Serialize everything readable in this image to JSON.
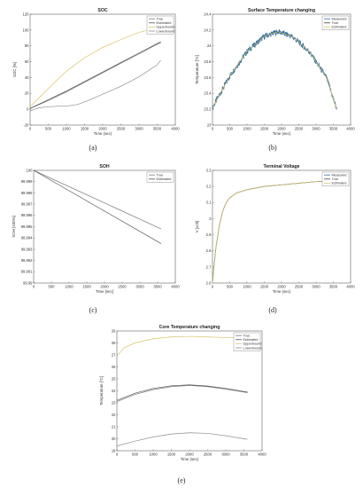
{
  "chart_data": [
    {
      "id": "a",
      "caption": "(a)",
      "type": "line",
      "title": "SOC",
      "xlabel": "Time (sec)",
      "ylabel": "SOC [%]",
      "xlim": [
        0,
        4000
      ],
      "ylim": [
        -20,
        120
      ],
      "xticks": [
        0,
        500,
        1000,
        1500,
        2000,
        2500,
        3000,
        3500,
        4000
      ],
      "yticks": [
        -20,
        0,
        20,
        40,
        60,
        80,
        100,
        120
      ],
      "grid": false,
      "legend_position": "top-right",
      "series": [
        {
          "name": "True",
          "color": "#7a7a7a",
          "x": [
            0,
            500,
            1000,
            1500,
            2000,
            2500,
            3000,
            3500,
            3600
          ],
          "y": [
            1,
            11,
            22,
            34,
            46,
            58,
            70,
            82,
            84
          ]
        },
        {
          "name": "Estimated",
          "color": "#555555",
          "x": [
            0,
            500,
            1000,
            1500,
            2000,
            2500,
            3000,
            3500,
            3600
          ],
          "y": [
            1,
            12,
            23,
            35,
            47,
            59,
            71,
            83,
            85
          ]
        },
        {
          "name": "Upperbound",
          "color": "#d9c46a",
          "x": [
            0,
            300,
            700,
            1000,
            1500,
            2000,
            2500,
            3000,
            3500,
            3600
          ],
          "y": [
            3,
            17,
            35,
            48,
            65,
            78,
            88,
            97,
            103,
            104
          ]
        },
        {
          "name": "Lowerbound",
          "color": "#8f8f8f",
          "x": [
            0,
            250,
            500,
            800,
            1000,
            1300,
            1600,
            2000,
            2500,
            3000,
            3500,
            3600
          ],
          "y": [
            -2,
            2,
            3,
            4,
            4,
            6,
            11,
            19,
            29,
            41,
            56,
            62
          ]
        }
      ]
    },
    {
      "id": "b",
      "caption": "(b)",
      "type": "line",
      "title": "Surface Temperature changing",
      "xlabel": "Time (sec)",
      "ylabel": "Temperature [ºC]",
      "xlim": [
        0,
        4000
      ],
      "ylim": [
        23,
        24.4
      ],
      "xticks": [
        0,
        500,
        1000,
        1500,
        2000,
        2500,
        3000,
        3500,
        4000
      ],
      "yticks": [
        23,
        23.2,
        23.4,
        23.6,
        23.8,
        24,
        24.2,
        24.4
      ],
      "grid": false,
      "legend_position": "top-right",
      "series": [
        {
          "name": "Measured",
          "color": "#2e6fa8",
          "noisy": true,
          "x": [
            0,
            500,
            1000,
            1500,
            1900,
            2300,
            2800,
            3300,
            3600
          ],
          "y": [
            23.22,
            23.62,
            23.93,
            24.12,
            24.18,
            24.12,
            23.93,
            23.6,
            23.2
          ]
        },
        {
          "name": "True",
          "color": "#444444",
          "x": [
            0,
            500,
            1000,
            1500,
            1900,
            2300,
            2800,
            3300,
            3600
          ],
          "y": [
            23.22,
            23.62,
            23.93,
            24.12,
            24.18,
            24.12,
            23.93,
            23.6,
            23.2
          ]
        },
        {
          "name": "Estimated",
          "color": "#d9c46a",
          "x": [
            0,
            500,
            1000,
            1500,
            1900,
            2300,
            2800,
            3300,
            3600
          ],
          "y": [
            23.22,
            23.62,
            23.93,
            24.12,
            24.18,
            24.12,
            23.93,
            23.6,
            23.2
          ]
        }
      ]
    },
    {
      "id": "c",
      "caption": "(c)",
      "type": "line",
      "title": "SOH",
      "xlabel": "Time [sec]",
      "ylabel": "SOH [100%]",
      "xlim": [
        0,
        4000
      ],
      "ylim": [
        99.99,
        100
      ],
      "xticks": [
        0,
        500,
        1000,
        1500,
        2000,
        2500,
        3000,
        3500,
        4000
      ],
      "yticks": [
        99.99,
        99.991,
        99.992,
        99.993,
        99.994,
        99.995,
        99.996,
        99.997,
        99.998,
        99.999,
        100
      ],
      "grid": false,
      "legend_position": "top-right",
      "series": [
        {
          "name": "True",
          "color": "#7a7a7a",
          "x": [
            0,
            3600
          ],
          "y": [
            100,
            99.9948
          ]
        },
        {
          "name": "Estimated",
          "color": "#555555",
          "x": [
            0,
            3600
          ],
          "y": [
            100,
            99.9935
          ]
        }
      ]
    },
    {
      "id": "d",
      "caption": "(d)",
      "type": "line",
      "title": "Terminal Voltage",
      "xlabel": "Time (sec)",
      "ylabel": "V [volt]",
      "xlim": [
        0,
        4000
      ],
      "ylim": [
        2.6,
        3.3
      ],
      "xticks": [
        0,
        500,
        1000,
        1500,
        2000,
        2500,
        3000,
        3500,
        4000
      ],
      "yticks": [
        2.6,
        2.7,
        2.8,
        2.9,
        3,
        3.1,
        3.2,
        3.3
      ],
      "grid": false,
      "legend_position": "top-right",
      "series": [
        {
          "name": "Measured",
          "color": "#2e6fa8",
          "x": [
            0,
            50,
            100,
            200,
            300,
            400,
            500,
            700,
            1000,
            1500,
            2000,
            2500,
            3000,
            3500,
            3600
          ],
          "y": [
            2.6,
            2.72,
            2.82,
            2.96,
            3.05,
            3.1,
            3.13,
            3.16,
            3.18,
            3.2,
            3.21,
            3.22,
            3.23,
            3.235,
            3.24
          ]
        },
        {
          "name": "True",
          "color": "#444444",
          "x": [
            0,
            50,
            100,
            200,
            300,
            400,
            500,
            700,
            1000,
            1500,
            2000,
            2500,
            3000,
            3500,
            3600
          ],
          "y": [
            2.6,
            2.72,
            2.82,
            2.96,
            3.05,
            3.1,
            3.13,
            3.16,
            3.18,
            3.2,
            3.21,
            3.22,
            3.23,
            3.235,
            3.24
          ]
        },
        {
          "name": "Estimated",
          "color": "#d9c46a",
          "x": [
            0,
            50,
            100,
            200,
            300,
            400,
            500,
            700,
            1000,
            1500,
            2000,
            2500,
            3000,
            3500,
            3600
          ],
          "y": [
            2.6,
            2.72,
            2.82,
            2.96,
            3.05,
            3.1,
            3.13,
            3.16,
            3.18,
            3.2,
            3.21,
            3.22,
            3.23,
            3.235,
            3.24
          ]
        }
      ]
    },
    {
      "id": "e",
      "caption": "(e)",
      "type": "line",
      "title": "Core Temperature changing",
      "xlabel": "Time (sec)",
      "ylabel": "Temperature [ºC]",
      "xlim": [
        0,
        4000
      ],
      "ylim": [
        19,
        29
      ],
      "xticks": [
        0,
        500,
        1000,
        1500,
        2000,
        2500,
        3000,
        3500,
        4000
      ],
      "yticks": [
        19,
        20,
        21,
        22,
        23,
        24,
        25,
        26,
        27,
        28,
        29
      ],
      "grid": false,
      "legend_position": "top-right",
      "series": [
        {
          "name": "True",
          "color": "#7a7a7a",
          "x": [
            0,
            500,
            1000,
            1500,
            2000,
            2500,
            3000,
            3500,
            3600
          ],
          "y": [
            23.1,
            23.7,
            24.1,
            24.35,
            24.45,
            24.35,
            24.15,
            23.9,
            23.85
          ]
        },
        {
          "name": "Estimated",
          "color": "#555555",
          "x": [
            0,
            500,
            1000,
            1500,
            2000,
            2500,
            3000,
            3500,
            3600
          ],
          "y": [
            23.2,
            23.8,
            24.2,
            24.42,
            24.5,
            24.4,
            24.2,
            23.95,
            23.9
          ]
        },
        {
          "name": "Upperbound",
          "color": "#d9c46a",
          "x": [
            0,
            200,
            500,
            1000,
            1500,
            2000,
            2500,
            3000,
            3500,
            3600
          ],
          "y": [
            26.9,
            27.6,
            28.0,
            28.35,
            28.5,
            28.55,
            28.5,
            28.45,
            28.4,
            28.4
          ]
        },
        {
          "name": "Lowerbound",
          "color": "#8f8f8f",
          "x": [
            0,
            500,
            1000,
            1500,
            2000,
            2500,
            3000,
            3500,
            3600
          ],
          "y": [
            19.4,
            19.8,
            20.15,
            20.4,
            20.5,
            20.45,
            20.25,
            20.0,
            19.95
          ]
        }
      ]
    }
  ]
}
